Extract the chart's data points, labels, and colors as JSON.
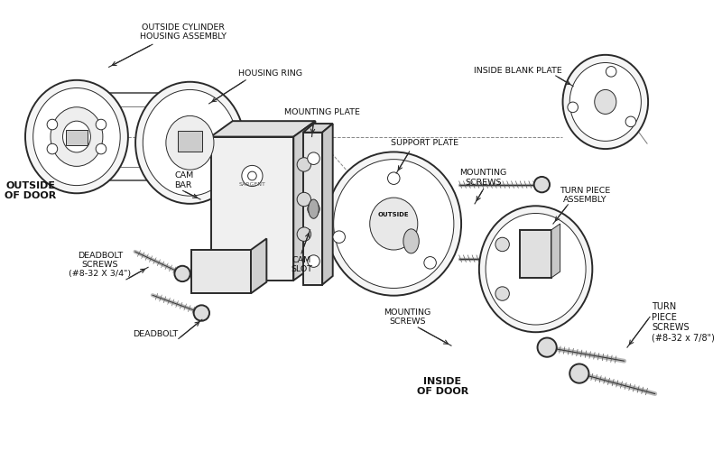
{
  "bg_color": "#ffffff",
  "line_color": "#2a2a2a",
  "lw_main": 1.4,
  "lw_thin": 0.7,
  "lw_dash": 0.8,
  "fig_width": 8.0,
  "fig_height": 5.0,
  "dpi": 100,
  "outside_cylinder_label": "OUTSIDE CYLINDER\nHOUSING ASSEMBLY",
  "housing_ring_label": "HOUSING RING",
  "mounting_plate_label": "MOUNTING PLATE",
  "inside_blank_plate_label": "INSIDE BLANK PLATE",
  "support_plate_label": "SUPPORT PLATE",
  "mounting_screws_label1": "MOUNTING\nSCREWS",
  "mounting_screws_label2": "MOUNTING\nSCREWS",
  "turn_piece_assembly_label": "TURN PIECE\nASSEMBLY",
  "turn_piece_screws_label": "TURN\nPIECE\nSCREWS\n(#8-32 x 7/8\")",
  "outside_of_door_label": "OUTSIDE\nOF DOOR",
  "cam_bar_label": "CAM\nBAR",
  "cam_slot_label": "CAM\nSLOT",
  "deadbolt_screws_label": "DEADBOLT\nSCREWS\n(#8-32 X 3/4\")",
  "deadbolt_label": "DEADBOLT",
  "inside_of_door_label": "INSIDE\nOF DOOR"
}
